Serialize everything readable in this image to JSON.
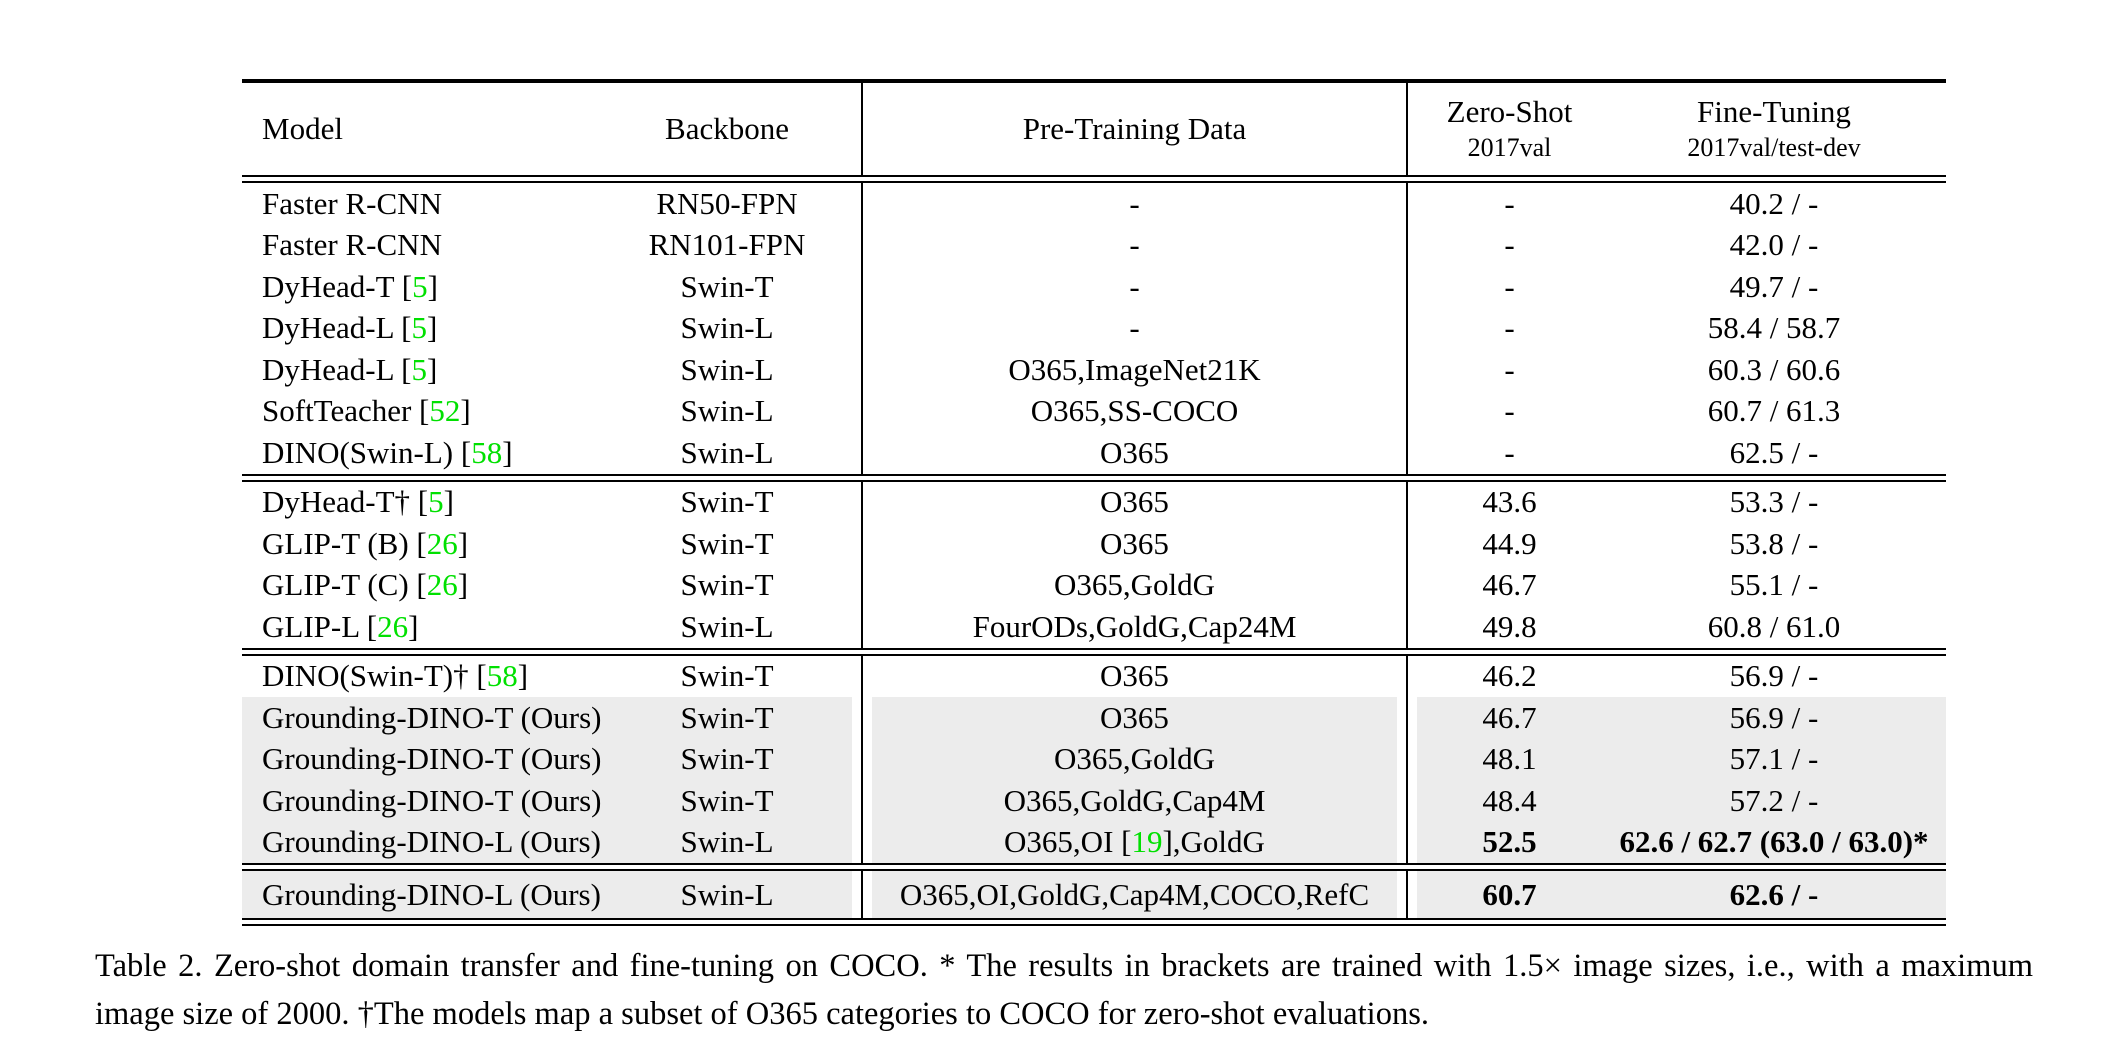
{
  "colors": {
    "citation_green": "#00e000",
    "row_highlight": "#ececec",
    "text": "#000000"
  },
  "table": {
    "header": {
      "model": "Model",
      "backbone": "Backbone",
      "pretrain": "Pre-Training Data",
      "zero_shot_line1": "Zero-Shot",
      "zero_shot_line2": "2017val",
      "fine_tune_line1": "Fine-Tuning",
      "fine_tune_line2": "2017val/test-dev"
    },
    "groups": [
      {
        "rows": [
          {
            "model": "Faster R-CNN",
            "backbone": "RN50-FPN",
            "pretrain": "-",
            "zs": "-",
            "ft": "40.2 / -",
            "highlight": false,
            "bold_metrics": false
          },
          {
            "model": "Faster R-CNN",
            "backbone": "RN101-FPN",
            "pretrain": "-",
            "zs": "-",
            "ft": "42.0 / -",
            "highlight": false,
            "bold_metrics": false
          },
          {
            "model": "DyHead-T [5]",
            "backbone": "Swin-T",
            "pretrain": "-",
            "zs": "-",
            "ft": "49.7 / -",
            "highlight": false,
            "bold_metrics": false
          },
          {
            "model": "DyHead-L [5]",
            "backbone": "Swin-L",
            "pretrain": "-",
            "zs": "-",
            "ft": "58.4 / 58.7",
            "highlight": false,
            "bold_metrics": false
          },
          {
            "model": "DyHead-L [5]",
            "backbone": "Swin-L",
            "pretrain": "O365,ImageNet21K",
            "zs": "-",
            "ft": "60.3 / 60.6",
            "highlight": false,
            "bold_metrics": false
          },
          {
            "model": "SoftTeacher [52]",
            "backbone": "Swin-L",
            "pretrain": "O365,SS-COCO",
            "zs": "-",
            "ft": "60.7 / 61.3",
            "highlight": false,
            "bold_metrics": false
          },
          {
            "model": "DINO(Swin-L) [58]",
            "backbone": "Swin-L",
            "pretrain": "O365",
            "zs": "-",
            "ft": "62.5 / -",
            "highlight": false,
            "bold_metrics": false
          }
        ]
      },
      {
        "rows": [
          {
            "model": "DyHead-T† [5]",
            "backbone": "Swin-T",
            "pretrain": "O365",
            "zs": "43.6",
            "ft": "53.3 / -",
            "highlight": false,
            "bold_metrics": false
          },
          {
            "model": "GLIP-T (B) [26]",
            "backbone": "Swin-T",
            "pretrain": "O365",
            "zs": "44.9",
            "ft": "53.8 / -",
            "highlight": false,
            "bold_metrics": false
          },
          {
            "model": "GLIP-T (C) [26]",
            "backbone": "Swin-T",
            "pretrain": "O365,GoldG",
            "zs": "46.7",
            "ft": "55.1 / -",
            "highlight": false,
            "bold_metrics": false
          },
          {
            "model": "GLIP-L [26]",
            "backbone": "Swin-L",
            "pretrain": "FourODs,GoldG,Cap24M",
            "zs": "49.8",
            "ft": "60.8 / 61.0",
            "highlight": false,
            "bold_metrics": false
          }
        ]
      },
      {
        "rows": [
          {
            "model": "DINO(Swin-T)† [58]",
            "backbone": "Swin-T",
            "pretrain": "O365",
            "zs": "46.2",
            "ft": "56.9 / -",
            "highlight": false,
            "bold_metrics": false
          },
          {
            "model": "Grounding-DINO-T (Ours)",
            "backbone": "Swin-T",
            "pretrain": "O365",
            "zs": "46.7",
            "ft": "56.9 / -",
            "highlight": true,
            "bold_metrics": false
          },
          {
            "model": "Grounding-DINO-T (Ours)",
            "backbone": "Swin-T",
            "pretrain": "O365,GoldG",
            "zs": "48.1",
            "ft": "57.1 / -",
            "highlight": true,
            "bold_metrics": false
          },
          {
            "model": "Grounding-DINO-T (Ours)",
            "backbone": "Swin-T",
            "pretrain": "O365,GoldG,Cap4M",
            "zs": "48.4",
            "ft": "57.2 / -",
            "highlight": true,
            "bold_metrics": false
          },
          {
            "model": "Grounding-DINO-L (Ours)",
            "backbone": "Swin-L",
            "pretrain": "O365,OI [19],GoldG",
            "zs": "52.5",
            "ft": "62.6 / 62.7 (63.0 / 63.0)*",
            "highlight": true,
            "bold_metrics": true
          }
        ]
      },
      {
        "rows": [
          {
            "model": "Grounding-DINO-L (Ours)",
            "backbone": "Swin-L",
            "pretrain": "O365,OI,GoldG,Cap4M,COCO,RefC",
            "zs": "60.7",
            "ft": "62.6 / -",
            "highlight": true,
            "bold_metrics": true
          }
        ]
      }
    ]
  },
  "caption": {
    "text": "Table 2.  Zero-shot domain transfer and fine-tuning on COCO. * The results in brackets are trained with 1.5× image sizes, i.e., with a maximum image size of 2000. †The models map a subset of O365 categories to COCO for zero-shot evaluations."
  }
}
